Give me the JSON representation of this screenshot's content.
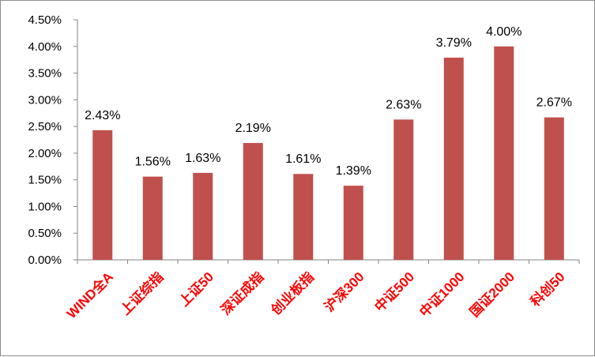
{
  "chart_data": {
    "type": "bar",
    "categories": [
      "WIND全A",
      "上证综指",
      "上证50",
      "深证成指",
      "创业板指",
      "沪深300",
      "中证500",
      "中证1000",
      "国证2000",
      "科创50"
    ],
    "values": [
      2.43,
      1.56,
      1.63,
      2.19,
      1.61,
      1.39,
      2.63,
      3.79,
      4.0,
      2.67
    ],
    "data_labels": [
      "2.43%",
      "1.56%",
      "1.63%",
      "2.19%",
      "1.61%",
      "1.39%",
      "2.63%",
      "3.79%",
      "4.00%",
      "2.67%"
    ],
    "y_ticks": [
      0,
      0.5,
      1,
      1.5,
      2,
      2.5,
      3,
      3.5,
      4,
      4.5
    ],
    "y_tick_labels": [
      "0.00%",
      "0.50%",
      "1.00%",
      "1.50%",
      "2.00%",
      "2.50%",
      "3.00%",
      "3.50%",
      "4.00%",
      "4.50%"
    ],
    "ylim": [
      0,
      4.5
    ],
    "title": "",
    "xlabel": "",
    "ylabel": "",
    "grid": false,
    "legend": "none",
    "bar_color": "#c0504d",
    "category_label_color": "#ff0000"
  }
}
